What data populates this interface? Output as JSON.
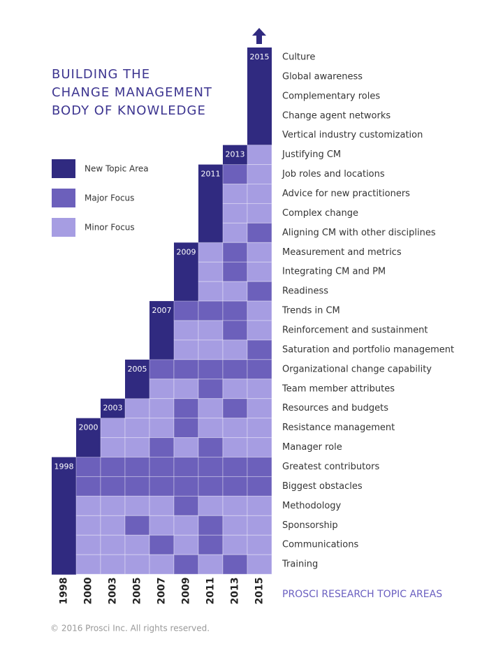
{
  "title": [
    "BUILDING THE",
    "CHANGE MANAGEMENT",
    "BODY OF KNOWLEDGE"
  ],
  "legend": [
    {
      "label": "New Topic Area",
      "color": "#302a80"
    },
    {
      "label": "Major Focus",
      "color": "#6c60bb"
    },
    {
      "label": "Minor Focus",
      "color": "#a69de2"
    }
  ],
  "years": [
    "1998",
    "2000",
    "2003",
    "2005",
    "2007",
    "2009",
    "2011",
    "2013",
    "2015"
  ],
  "topics": [
    {
      "label": "Culture",
      "focus": [
        null,
        null,
        null,
        null,
        null,
        null,
        null,
        null,
        0
      ]
    },
    {
      "label": "Global awareness",
      "focus": [
        null,
        null,
        null,
        null,
        null,
        null,
        null,
        null,
        0
      ]
    },
    {
      "label": "Complementary roles",
      "focus": [
        null,
        null,
        null,
        null,
        null,
        null,
        null,
        null,
        0
      ]
    },
    {
      "label": "Change agent networks",
      "focus": [
        null,
        null,
        null,
        null,
        null,
        null,
        null,
        null,
        0
      ]
    },
    {
      "label": "Vertical industry customization",
      "focus": [
        null,
        null,
        null,
        null,
        null,
        null,
        null,
        null,
        0
      ]
    },
    {
      "label": "Justifying CM",
      "focus": [
        null,
        null,
        null,
        null,
        null,
        null,
        null,
        0,
        2
      ]
    },
    {
      "label": "Job roles and locations",
      "focus": [
        null,
        null,
        null,
        null,
        null,
        null,
        0,
        1,
        2
      ]
    },
    {
      "label": "Advice for new practitioners",
      "focus": [
        null,
        null,
        null,
        null,
        null,
        null,
        0,
        2,
        2
      ]
    },
    {
      "label": "Complex change",
      "focus": [
        null,
        null,
        null,
        null,
        null,
        null,
        0,
        2,
        2
      ]
    },
    {
      "label": "Aligning CM with other disciplines",
      "focus": [
        null,
        null,
        null,
        null,
        null,
        null,
        0,
        2,
        1
      ]
    },
    {
      "label": "Measurement and metrics",
      "focus": [
        null,
        null,
        null,
        null,
        null,
        0,
        2,
        1,
        2
      ]
    },
    {
      "label": "Integrating CM and PM",
      "focus": [
        null,
        null,
        null,
        null,
        null,
        0,
        2,
        1,
        2
      ]
    },
    {
      "label": "Readiness",
      "focus": [
        null,
        null,
        null,
        null,
        null,
        0,
        2,
        2,
        1
      ]
    },
    {
      "label": "Trends in CM",
      "focus": [
        null,
        null,
        null,
        null,
        0,
        1,
        1,
        1,
        2
      ]
    },
    {
      "label": "Reinforcement and sustainment",
      "focus": [
        null,
        null,
        null,
        null,
        0,
        2,
        2,
        1,
        2
      ]
    },
    {
      "label": "Saturation and portfolio management",
      "focus": [
        null,
        null,
        null,
        null,
        0,
        2,
        2,
        2,
        1
      ]
    },
    {
      "label": "Organizational change capability",
      "focus": [
        null,
        null,
        null,
        0,
        1,
        1,
        1,
        1,
        1
      ]
    },
    {
      "label": "Team member attributes",
      "focus": [
        null,
        null,
        null,
        0,
        2,
        2,
        1,
        2,
        2
      ]
    },
    {
      "label": "Resources and budgets",
      "focus": [
        null,
        null,
        0,
        2,
        2,
        1,
        2,
        1,
        2
      ]
    },
    {
      "label": "Resistance management",
      "focus": [
        null,
        0,
        2,
        2,
        2,
        1,
        2,
        2,
        2
      ]
    },
    {
      "label": "Manager role",
      "focus": [
        null,
        0,
        2,
        2,
        1,
        2,
        1,
        2,
        2
      ]
    },
    {
      "label": "Greatest contributors",
      "focus": [
        0,
        1,
        1,
        1,
        1,
        1,
        1,
        1,
        1
      ]
    },
    {
      "label": "Biggest obstacles",
      "focus": [
        0,
        1,
        1,
        1,
        1,
        1,
        1,
        1,
        1
      ]
    },
    {
      "label": "Methodology",
      "focus": [
        0,
        2,
        2,
        2,
        2,
        1,
        2,
        2,
        2
      ]
    },
    {
      "label": "Sponsorship",
      "focus": [
        0,
        2,
        2,
        1,
        2,
        2,
        1,
        2,
        2
      ]
    },
    {
      "label": "Communications",
      "focus": [
        0,
        2,
        2,
        2,
        1,
        2,
        1,
        2,
        2
      ]
    },
    {
      "label": "Training",
      "focus": [
        0,
        2,
        2,
        2,
        2,
        1,
        2,
        1,
        2
      ]
    }
  ],
  "footer_title": "PROSCI RESEARCH TOPIC AREAS",
  "copyright": "© 2016 Prosci Inc. All rights reserved."
}
